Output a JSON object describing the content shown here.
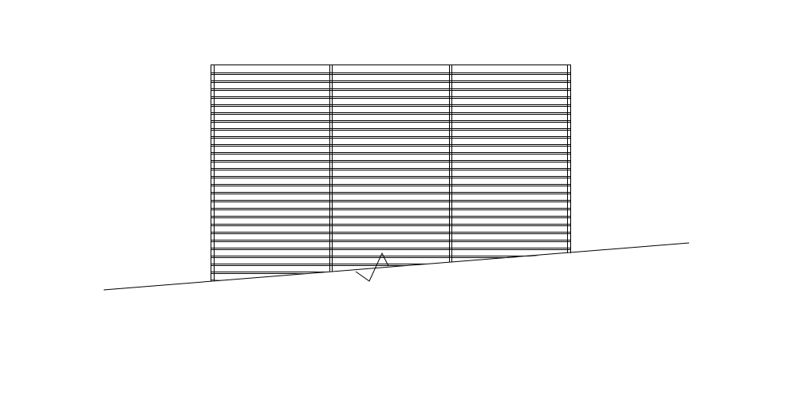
{
  "drawing": {
    "type": "elevation",
    "subject": "horizontal-slat-fence-panel-on-slope",
    "slat_count": 27,
    "intermediate_post_count": 2,
    "bay_count": 3,
    "line_color": "#000000",
    "background_color": "#ffffff"
  }
}
